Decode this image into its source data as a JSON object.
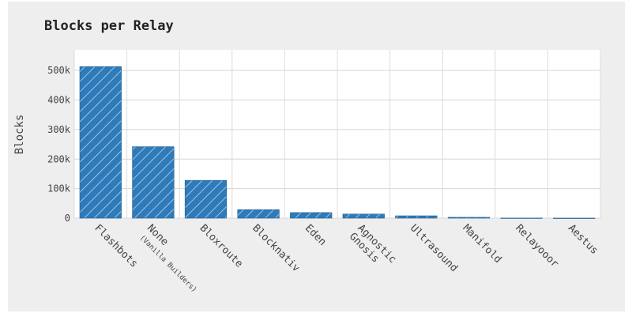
{
  "title": "Blocks per Relay",
  "chart_data": {
    "type": "bar",
    "title": "Blocks per Relay",
    "xlabel": "",
    "ylabel": "Blocks",
    "ylim": [
      0,
      570000
    ],
    "yticks": [
      0,
      100000,
      200000,
      300000,
      400000,
      500000
    ],
    "ytick_labels": [
      "0",
      "100k",
      "200k",
      "300k",
      "400k",
      "500k"
    ],
    "categories": [
      {
        "lines": [
          "Flashbots"
        ],
        "sub": ""
      },
      {
        "lines": [
          "None"
        ],
        "sub": "(Vanilla Builders)"
      },
      {
        "lines": [
          "Bloxroute"
        ],
        "sub": ""
      },
      {
        "lines": [
          "Blocknativ"
        ],
        "sub": ""
      },
      {
        "lines": [
          "Eden"
        ],
        "sub": ""
      },
      {
        "lines": [
          "Agnostic",
          "Gnosis"
        ],
        "sub": ""
      },
      {
        "lines": [
          "Ultrasound"
        ],
        "sub": ""
      },
      {
        "lines": [
          "Manifold"
        ],
        "sub": ""
      },
      {
        "lines": [
          "Relayooor"
        ],
        "sub": ""
      },
      {
        "lines": [
          "Aestus"
        ],
        "sub": ""
      }
    ],
    "values": [
      513000,
      242000,
      128000,
      29000,
      19000,
      14000,
      8000,
      3000,
      500,
      200
    ],
    "grid": true,
    "bar_color": "#2f7ab8",
    "hatch": "diagonal"
  }
}
